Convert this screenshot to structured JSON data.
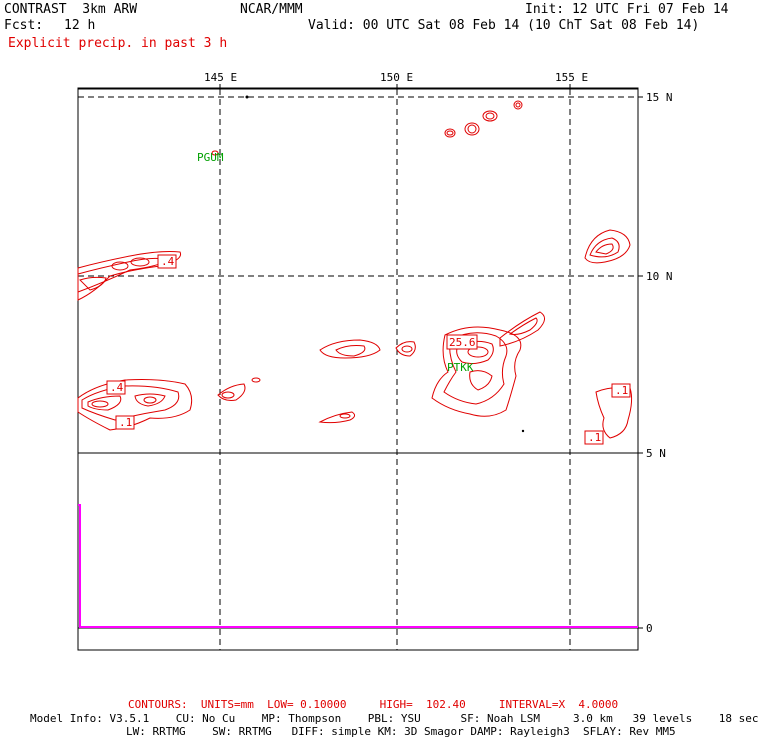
{
  "header": {
    "model": "CONTRAST  3km ARW",
    "org": "NCAR/MMM",
    "init": "Init: 12 UTC Fri 07 Feb 14",
    "fcst_label": "Fcst:",
    "fcst_value": "12 h",
    "valid": "Valid: 00 UTC Sat 08 Feb 14 (10 ChT Sat 08 Feb 14)",
    "field": "Explicit precip. in past 3 h"
  },
  "axes": {
    "lon_labels": [
      "145 E",
      "150 E",
      "155 E"
    ],
    "lat_labels": [
      "15 N",
      "10 N",
      "5 N"
    ],
    "profile_zero": "0"
  },
  "stations": [
    "PGUM",
    "PTKK"
  ],
  "contour_labels": [
    ".4",
    ".4",
    ".1",
    "25.6",
    ".1",
    ".1"
  ],
  "footer": {
    "contours": "CONTOURS:  UNITS=mm  LOW= 0.10000     HIGH=  102.40     INTERVAL=X  4.0000",
    "model_info_1": "Model Info: V3.5.1    CU: No Cu    MP: Thompson    PBL: YSU      SF: Noah LSM     3.0 km   39 levels    18 sec",
    "model_info_2": "LW: RRTMG    SW: RRTMG   DIFF: simple KM: 3D Smagor DAMP: Rayleigh3  SFLAY: Rev MM5"
  },
  "colors": {
    "contour": "#e00000",
    "station": "#00a000",
    "profile": "#ff00ff"
  }
}
